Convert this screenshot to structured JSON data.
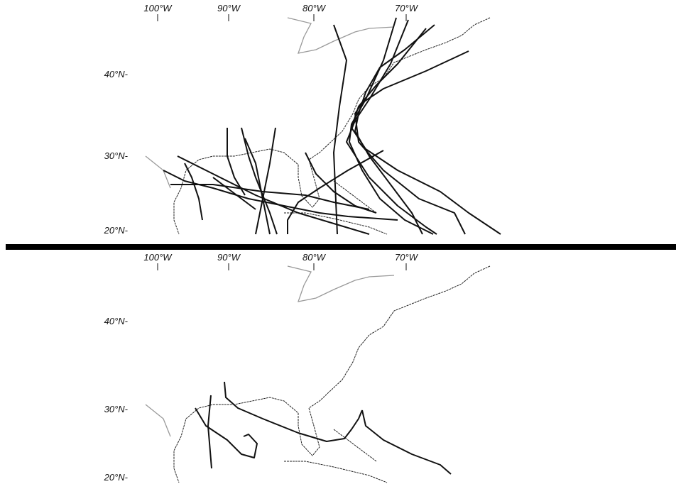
{
  "panels": [
    {
      "lon_labels": [
        "100°W",
        "90°W",
        "80°W",
        "70°W"
      ],
      "lat_labels": [
        "40°N-",
        "30°N-",
        "20°N-"
      ]
    },
    {
      "lon_labels": [
        "100°W",
        "90°W",
        "80°W",
        "70°W"
      ],
      "lat_labels": [
        "40°N-",
        "30°N-",
        "20°N-"
      ]
    }
  ]
}
